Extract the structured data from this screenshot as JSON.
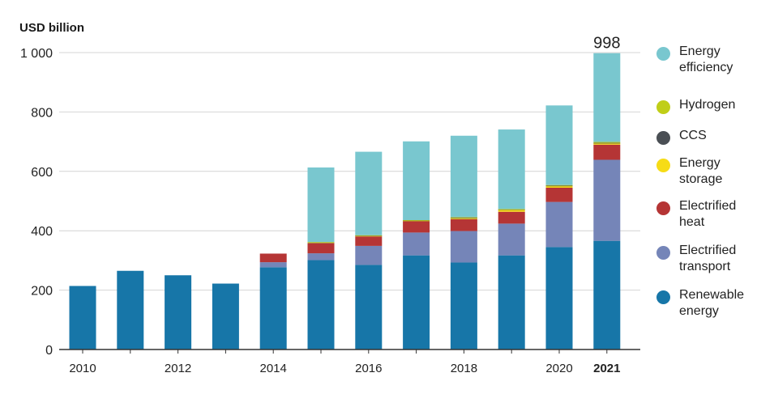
{
  "chart_data": {
    "type": "bar",
    "stacked": true,
    "ylabel": "USD billion",
    "ylim": [
      0,
      1000
    ],
    "yticks": [
      0,
      200,
      400,
      600,
      800,
      1000
    ],
    "ytick_labels": [
      "0",
      "200",
      "400",
      "600",
      "800",
      "1 000"
    ],
    "categories": [
      "2010",
      "2011",
      "2012",
      "2013",
      "2014",
      "2015",
      "2016",
      "2017",
      "2018",
      "2019",
      "2020",
      "2021"
    ],
    "category_labels": [
      "2010",
      "",
      "2012",
      "",
      "2014",
      "",
      "2016",
      "",
      "2018",
      "",
      "2020",
      "2021"
    ],
    "highlight_category": "2021",
    "total_annotation": {
      "category": "2021",
      "label": "998"
    },
    "series": [
      {
        "name": "Renewable energy",
        "key": "renewable",
        "color": "#1776a8",
        "values": [
          214,
          265,
          250,
          222,
          277,
          301,
          285,
          317,
          293,
          317,
          345,
          366
        ]
      },
      {
        "name": "Electrified transport",
        "key": "transport",
        "color": "#7585b8",
        "values": [
          0,
          0,
          0,
          0,
          17,
          23,
          64,
          77,
          106,
          107,
          152,
          273
        ]
      },
      {
        "name": "Electrified heat",
        "key": "heat",
        "color": "#b53535",
        "values": [
          0,
          0,
          0,
          0,
          29,
          34,
          32,
          38,
          40,
          40,
          48,
          51
        ]
      },
      {
        "name": "Energy storage",
        "key": "storage",
        "color": "#f6dc16",
        "values": [
          0,
          0,
          0,
          0,
          0,
          2,
          2,
          2,
          4,
          7,
          6,
          5
        ]
      },
      {
        "name": "CCS",
        "key": "ccs",
        "color": "#4a4f54",
        "values": [
          0,
          0,
          0,
          0,
          0,
          1,
          1,
          1,
          1,
          1,
          1,
          1
        ]
      },
      {
        "name": "Hydrogen",
        "key": "hydrogen",
        "color": "#c0ce18",
        "values": [
          0,
          0,
          0,
          0,
          0,
          1,
          1,
          1,
          2,
          1,
          2,
          3
        ]
      },
      {
        "name": "Energy efficiency",
        "key": "efficiency",
        "color": "#79c7cf",
        "values": [
          0,
          0,
          0,
          0,
          0,
          251,
          281,
          265,
          274,
          268,
          268,
          299
        ]
      }
    ],
    "legend": [
      {
        "label_line1": "Energy",
        "label_line2": "efficiency",
        "color": "#79c7cf"
      },
      {
        "label_line1": "Hydrogen",
        "label_line2": "",
        "color": "#c0ce18"
      },
      {
        "label_line1": "CCS",
        "label_line2": "",
        "color": "#4a4f54"
      },
      {
        "label_line1": "Energy",
        "label_line2": "storage",
        "color": "#f6dc16"
      },
      {
        "label_line1": "Electrified",
        "label_line2": "heat",
        "color": "#b53535"
      },
      {
        "label_line1": "Electrified",
        "label_line2": "transport",
        "color": "#7585b8"
      },
      {
        "label_line1": "Renewable",
        "label_line2": "energy",
        "color": "#1776a8"
      }
    ],
    "legend_position": "right",
    "grid": true
  }
}
